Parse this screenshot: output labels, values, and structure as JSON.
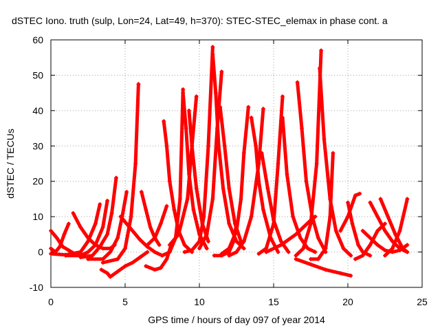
{
  "chart_data": {
    "type": "scatter",
    "title": "dSTEC Iono. truth (sulp, Lon=24, Lat=49, h=370): STEC-STEC_elemax in phase cont. a",
    "xlabel": "GPS time / hours of day 097 of year 2014",
    "ylabel": "dSTEC  / TECUs",
    "xlim": [
      0,
      25
    ],
    "ylim": [
      -10,
      60
    ],
    "xticks": [
      0,
      5,
      10,
      15,
      20,
      25
    ],
    "yticks": [
      -10,
      0,
      10,
      20,
      30,
      40,
      50,
      60
    ],
    "grid": true,
    "marker": "+",
    "color": "#ff0000",
    "series": [
      {
        "x": [
          0.0,
          0.3,
          0.6,
          0.9,
          1.2
        ],
        "y": [
          1.0,
          0.0,
          1.5,
          5.0,
          8.0
        ]
      },
      {
        "x": [
          0.0,
          0.4,
          0.8,
          1.2,
          1.6
        ],
        "y": [
          6.0,
          4.0,
          1.5,
          0.5,
          -0.5
        ]
      },
      {
        "x": [
          1.5,
          2.0,
          2.5,
          3.0,
          3.5,
          4.0,
          4.3
        ],
        "y": [
          11.0,
          7.0,
          4.0,
          2.0,
          1.0,
          1.0,
          2.0
        ]
      },
      {
        "x": [
          0.0,
          1.0,
          2.0,
          2.5,
          3.0,
          3.3
        ],
        "y": [
          -0.5,
          -0.8,
          0.0,
          3.0,
          8.0,
          13.5
        ]
      },
      {
        "x": [
          1.0,
          2.0,
          2.5,
          3.0,
          3.5,
          3.8
        ],
        "y": [
          -1.0,
          -1.0,
          0.0,
          2.0,
          7.0,
          14.5
        ]
      },
      {
        "x": [
          2.0,
          2.8,
          3.3,
          3.8,
          4.1,
          4.4
        ],
        "y": [
          -1.5,
          -1.0,
          1.5,
          5.0,
          11.0,
          21.0
        ]
      },
      {
        "x": [
          2.5,
          3.5,
          4.0,
          4.5,
          4.8,
          5.1
        ],
        "y": [
          -2.0,
          -2.0,
          0.0,
          4.0,
          10.0,
          17.0
        ]
      },
      {
        "x": [
          3.5,
          4.5,
          5.0,
          5.4,
          5.7,
          5.9
        ],
        "y": [
          -3.0,
          -2.0,
          1.0,
          10.0,
          25.0,
          47.5
        ]
      },
      {
        "x": [
          3.4,
          3.8,
          4.0,
          4.5,
          5.0,
          5.5,
          6.0,
          6.5
        ],
        "y": [
          -5.0,
          -6.0,
          -7.0,
          -5.5,
          -4.0,
          -3.0,
          -1.5,
          0.0
        ]
      },
      {
        "x": [
          4.7,
          5.0,
          5.5,
          6.0,
          6.5,
          7.0,
          7.5
        ],
        "y": [
          10.0,
          8.5,
          6.0,
          3.5,
          1.5,
          0.0,
          -1.0
        ]
      },
      {
        "x": [
          6.1,
          6.4,
          6.7,
          7.0,
          7.3
        ],
        "y": [
          17.0,
          12.0,
          7.0,
          4.0,
          2.0
        ]
      },
      {
        "x": [
          6.4,
          7.0,
          7.4,
          7.8,
          8.1
        ],
        "y": [
          -4.0,
          -5.0,
          -4.5,
          -2.0,
          2.0
        ]
      },
      {
        "x": [
          6.5,
          7.0,
          7.4,
          7.8
        ],
        "y": [
          2.0,
          4.0,
          8.0,
          13.0
        ]
      },
      {
        "x": [
          7.6,
          7.8,
          8.0,
          8.3,
          8.6,
          9.0,
          9.5
        ],
        "y": [
          37.0,
          30.0,
          20.0,
          12.0,
          6.0,
          2.0,
          0.0
        ]
      },
      {
        "x": [
          7.5,
          8.0,
          8.4,
          8.7,
          8.9
        ],
        "y": [
          -1.0,
          0.0,
          4.0,
          15.0,
          46.0
        ]
      },
      {
        "x": [
          8.9,
          9.1,
          9.3,
          9.6,
          10.0,
          10.5
        ],
        "y": [
          45.0,
          35.0,
          22.0,
          12.0,
          5.0,
          1.0
        ]
      },
      {
        "x": [
          8.0,
          8.6,
          9.2,
          9.5,
          9.8
        ],
        "y": [
          2.0,
          5.0,
          15.0,
          30.0,
          44.0
        ]
      },
      {
        "x": [
          9.3,
          9.5,
          9.8,
          10.2,
          10.6
        ],
        "y": [
          40.0,
          30.0,
          18.0,
          8.0,
          3.0
        ]
      },
      {
        "x": [
          9.0,
          9.5,
          10.0,
          10.3,
          10.6,
          10.9
        ],
        "y": [
          0.0,
          0.5,
          3.0,
          10.0,
          30.0,
          58.0
        ]
      },
      {
        "x": [
          10.9,
          11.1,
          11.3,
          11.6,
          12.0,
          12.5,
          13.0
        ],
        "y": [
          56.0,
          45.0,
          30.0,
          18.0,
          8.0,
          3.0,
          1.0
        ]
      },
      {
        "x": [
          10.0,
          10.5,
          10.9,
          11.2,
          11.5
        ],
        "y": [
          1.0,
          5.0,
          15.0,
          35.0,
          51.0
        ]
      },
      {
        "x": [
          11.4,
          11.7,
          12.0,
          12.4,
          12.8
        ],
        "y": [
          41.0,
          30.0,
          18.0,
          8.0,
          3.0
        ]
      },
      {
        "x": [
          11.0,
          11.5,
          12.0,
          12.3,
          12.5
        ],
        "y": [
          -1.0,
          -1.0,
          0.0,
          3.0,
          8.0
        ]
      },
      {
        "x": [
          11.5,
          12.0,
          12.5,
          12.8,
          13.0,
          13.3
        ],
        "y": [
          -0.5,
          1.0,
          6.0,
          15.0,
          28.0,
          41.0
        ]
      },
      {
        "x": [
          12.0,
          12.5,
          13.0,
          13.5,
          14.0,
          14.3
        ],
        "y": [
          -1.0,
          0.0,
          3.0,
          10.0,
          25.0,
          40.5
        ]
      },
      {
        "x": [
          13.5,
          13.8,
          14.0,
          14.3,
          14.8,
          15.3
        ],
        "y": [
          38.0,
          30.0,
          20.0,
          12.0,
          4.0,
          0.0
        ]
      },
      {
        "x": [
          14.0,
          14.5,
          15.0,
          15.3,
          15.6
        ],
        "y": [
          -0.5,
          1.0,
          8.0,
          25.0,
          44.0
        ]
      },
      {
        "x": [
          15.6,
          15.9,
          16.3,
          16.8,
          17.3,
          17.8
        ],
        "y": [
          38.0,
          22.0,
          10.0,
          4.0,
          1.0,
          0.0
        ]
      },
      {
        "x": [
          14.2,
          14.6,
          15.0,
          15.5,
          16.0
        ],
        "y": [
          28.0,
          18.0,
          9.0,
          3.0,
          0.0
        ]
      },
      {
        "x": [
          14.5,
          15.5,
          16.5,
          17.0,
          17.5,
          17.8
        ],
        "y": [
          0.0,
          2.0,
          5.0,
          7.0,
          9.0,
          10.0
        ]
      },
      {
        "x": [
          16.6,
          16.9,
          17.2,
          17.6,
          18.0,
          18.5
        ],
        "y": [
          48.0,
          35.0,
          20.0,
          10.0,
          4.0,
          0.0
        ]
      },
      {
        "x": [
          16.5,
          17.0,
          17.5,
          17.9,
          18.2
        ],
        "y": [
          -1.0,
          1.0,
          8.0,
          25.0,
          57.0
        ]
      },
      {
        "x": [
          18.1,
          18.4,
          18.8,
          19.2,
          19.7,
          20.2
        ],
        "y": [
          52.0,
          32.0,
          15.0,
          6.0,
          1.0,
          -1.0
        ]
      },
      {
        "x": [
          17.5,
          18.0,
          18.5,
          18.8,
          19.0
        ],
        "y": [
          -2.0,
          -2.0,
          1.0,
          10.0,
          28.0
        ]
      },
      {
        "x": [
          16.5,
          17.5,
          18.5,
          19.5,
          20.2
        ],
        "y": [
          -2.0,
          -3.5,
          -5.0,
          -6.0,
          -6.7
        ]
      },
      {
        "x": [
          19.5,
          20.0,
          20.5,
          20.8
        ],
        "y": [
          6.0,
          10.0,
          16.0,
          16.5
        ]
      },
      {
        "x": [
          20.0,
          20.3,
          20.7,
          21.0,
          21.5
        ],
        "y": [
          14.0,
          8.0,
          2.0,
          0.0,
          -1.0
        ]
      },
      {
        "x": [
          20.5,
          21.0,
          21.5,
          22.0,
          22.5
        ],
        "y": [
          -2.0,
          -1.0,
          2.0,
          6.0,
          8.0
        ]
      },
      {
        "x": [
          21.0,
          21.5,
          22.0,
          22.5,
          23.0,
          23.5,
          24.0
        ],
        "y": [
          6.0,
          4.0,
          2.0,
          0.5,
          0.0,
          0.5,
          2.0
        ]
      },
      {
        "x": [
          21.5,
          22.0,
          22.5,
          23.0,
          23.5,
          24.0
        ],
        "y": [
          14.0,
          10.0,
          6.0,
          3.0,
          1.0,
          0.0
        ]
      },
      {
        "x": [
          22.5,
          23.0,
          23.5,
          24.0
        ],
        "y": [
          -1.0,
          1.0,
          6.0,
          15.0
        ]
      },
      {
        "x": [
          22.2,
          22.7,
          23.2,
          23.7,
          24.0
        ],
        "y": [
          15.0,
          10.0,
          5.0,
          1.0,
          0.0
        ]
      }
    ]
  }
}
